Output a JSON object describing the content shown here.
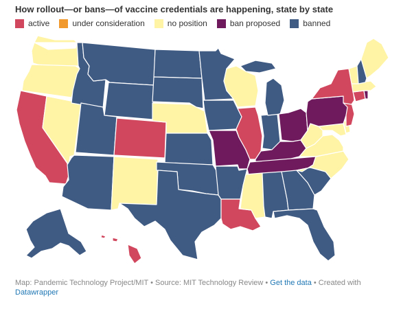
{
  "title": "How rollout—or bans—of vaccine credentials are happening, state by state",
  "legend": [
    {
      "label": "active",
      "color": "#d1475e"
    },
    {
      "label": "under consideration",
      "color": "#f2992e"
    },
    {
      "label": "no position",
      "color": "#fff3a5"
    },
    {
      "label": "ban proposed",
      "color": "#6e1a5c"
    },
    {
      "label": "banned",
      "color": "#3f5a83"
    }
  ],
  "states": {
    "WA": "no position",
    "OR": "no position",
    "CA": "active",
    "NV": "no position",
    "ID": "banned",
    "MT": "banned",
    "WY": "banned",
    "UT": "banned",
    "AZ": "banned",
    "CO": "active",
    "NM": "no position",
    "ND": "banned",
    "SD": "banned",
    "NE": "no position",
    "KS": "banned",
    "OK": "banned",
    "TX": "banned",
    "MN": "banned",
    "IA": "banned",
    "MO": "ban proposed",
    "AR": "banned",
    "LA": "active",
    "WI": "no position",
    "IL": "active",
    "IN": "banned",
    "MI": "banned",
    "OH": "ban proposed",
    "KY": "ban proposed",
    "TN": "ban proposed",
    "MS": "no position",
    "AL": "banned",
    "GA": "banned",
    "FL": "banned",
    "SC": "banned",
    "NC": "no position",
    "VA": "no position",
    "WV": "no position",
    "MD": "no position",
    "DE": "no position",
    "PA": "ban proposed",
    "NJ": "active",
    "NY": "active",
    "CT": "active",
    "RI": "ban proposed",
    "MA": "no position",
    "VT": "no position",
    "NH": "banned",
    "ME": "no position",
    "AK": "banned",
    "HI": "active"
  },
  "footer": {
    "credit": "Map: Pandemic Technology Project/MIT • Source: MIT Technology Review • ",
    "link1": "Get the data",
    "sep": " • Created with ",
    "link2": "Datawrapper"
  }
}
